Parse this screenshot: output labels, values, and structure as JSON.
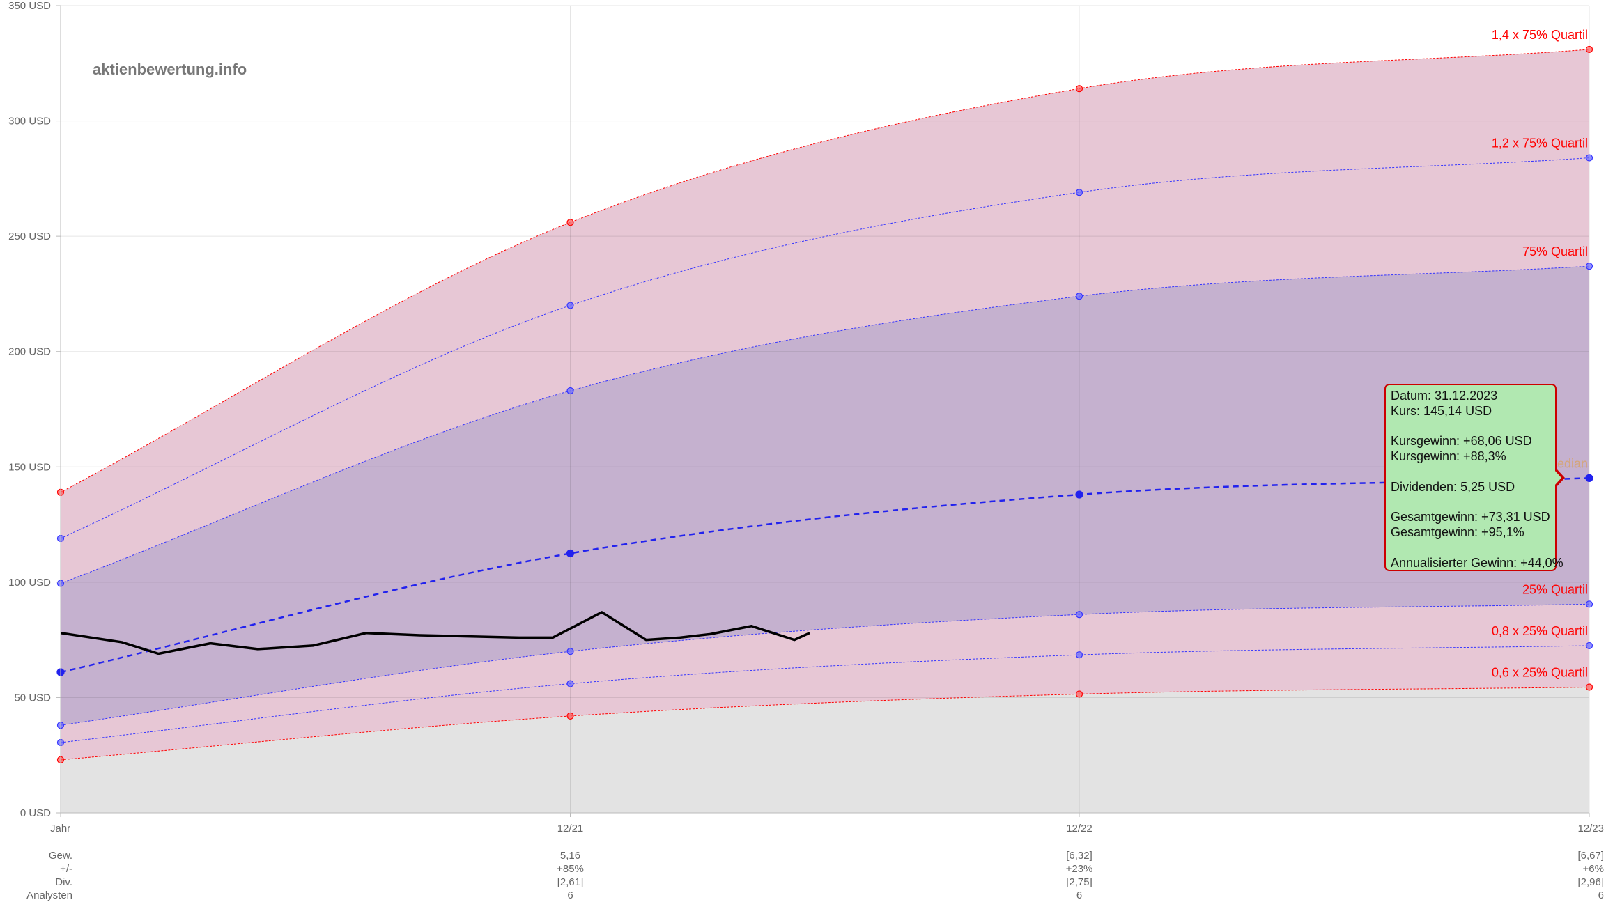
{
  "watermark": "aktienbewertung.info",
  "chart_data": {
    "type": "area",
    "currency": "USD",
    "ylim": [
      0,
      350
    ],
    "y_ticks": [
      0,
      50,
      100,
      150,
      200,
      250,
      300,
      350
    ],
    "y_tick_labels": [
      "0 USD",
      "50 USD",
      "100 USD",
      "150 USD",
      "200 USD",
      "250 USD",
      "300 USD",
      "350 USD"
    ],
    "x_tick_labels": [
      "Jahr",
      "12/21",
      "12/22",
      "12/23"
    ],
    "band_colors": {
      "outer": "#e7c7d5",
      "inner": "#c5b1cf",
      "base": "#e3e3e3"
    },
    "series": [
      {
        "name": "1,4 x 75% Quartil",
        "color": "#ff0000",
        "values": [
          139,
          256,
          314,
          331
        ]
      },
      {
        "name": "1,2 x 75% Quartil",
        "color": "#3333ff",
        "values": [
          119,
          220,
          269,
          284
        ]
      },
      {
        "name": "75% Quartil",
        "color": "#3333ff",
        "values": [
          99.5,
          183,
          224,
          237
        ]
      },
      {
        "name": "Median",
        "color": "#2222ee",
        "values": [
          61,
          112.5,
          138,
          145.14
        ]
      },
      {
        "name": "25% Quartil",
        "color": "#3333ff",
        "values": [
          38,
          70,
          86,
          90.5
        ]
      },
      {
        "name": "0,8 x 25% Quartil",
        "color": "#3333ff",
        "values": [
          30.5,
          56,
          68.5,
          72.5
        ]
      },
      {
        "name": "0,6 x 25% Quartil",
        "color": "#ff0000",
        "values": [
          23,
          42,
          51.5,
          54.5
        ]
      }
    ],
    "price_history": [
      [
        0,
        78
      ],
      [
        0.04,
        74
      ],
      [
        0.064,
        69
      ],
      [
        0.098,
        73.5
      ],
      [
        0.129,
        71
      ],
      [
        0.165,
        72.5
      ],
      [
        0.2,
        78
      ],
      [
        0.235,
        77
      ],
      [
        0.3,
        76
      ],
      [
        0.322,
        76
      ],
      [
        0.354,
        87
      ],
      [
        0.383,
        75
      ],
      [
        0.405,
        76
      ],
      [
        0.425,
        77.5
      ],
      [
        0.452,
        81
      ],
      [
        0.48,
        75
      ],
      [
        0.49,
        78
      ]
    ],
    "footer": {
      "row_labels": [
        "Gew.",
        "+/-",
        "Div.",
        "Analysten"
      ],
      "columns": [
        [
          "5,16",
          "+85%",
          "[2,61]",
          "6"
        ],
        [
          "[6,32]",
          "+23%",
          "[2,75]",
          "6"
        ],
        [
          "[6,67]",
          "+6%",
          "[2,96]",
          "6"
        ]
      ]
    }
  },
  "tooltip": {
    "datum": "Datum: 31.12.2023",
    "kurs": "Kurs: 145,14 USD",
    "kursgewinn_abs": "Kursgewinn: +68,06 USD",
    "kursgewinn_pct": "Kursgewinn: +88,3%",
    "dividenden": "Dividenden: 5,25 USD",
    "gesamtgewinn_abs": "Gesamtgewinn: +73,31 USD",
    "gesamtgewinn_pct": "Gesamtgewinn: +95,1%",
    "annualisiert": "Annualisierter Gewinn: +44,0%"
  }
}
